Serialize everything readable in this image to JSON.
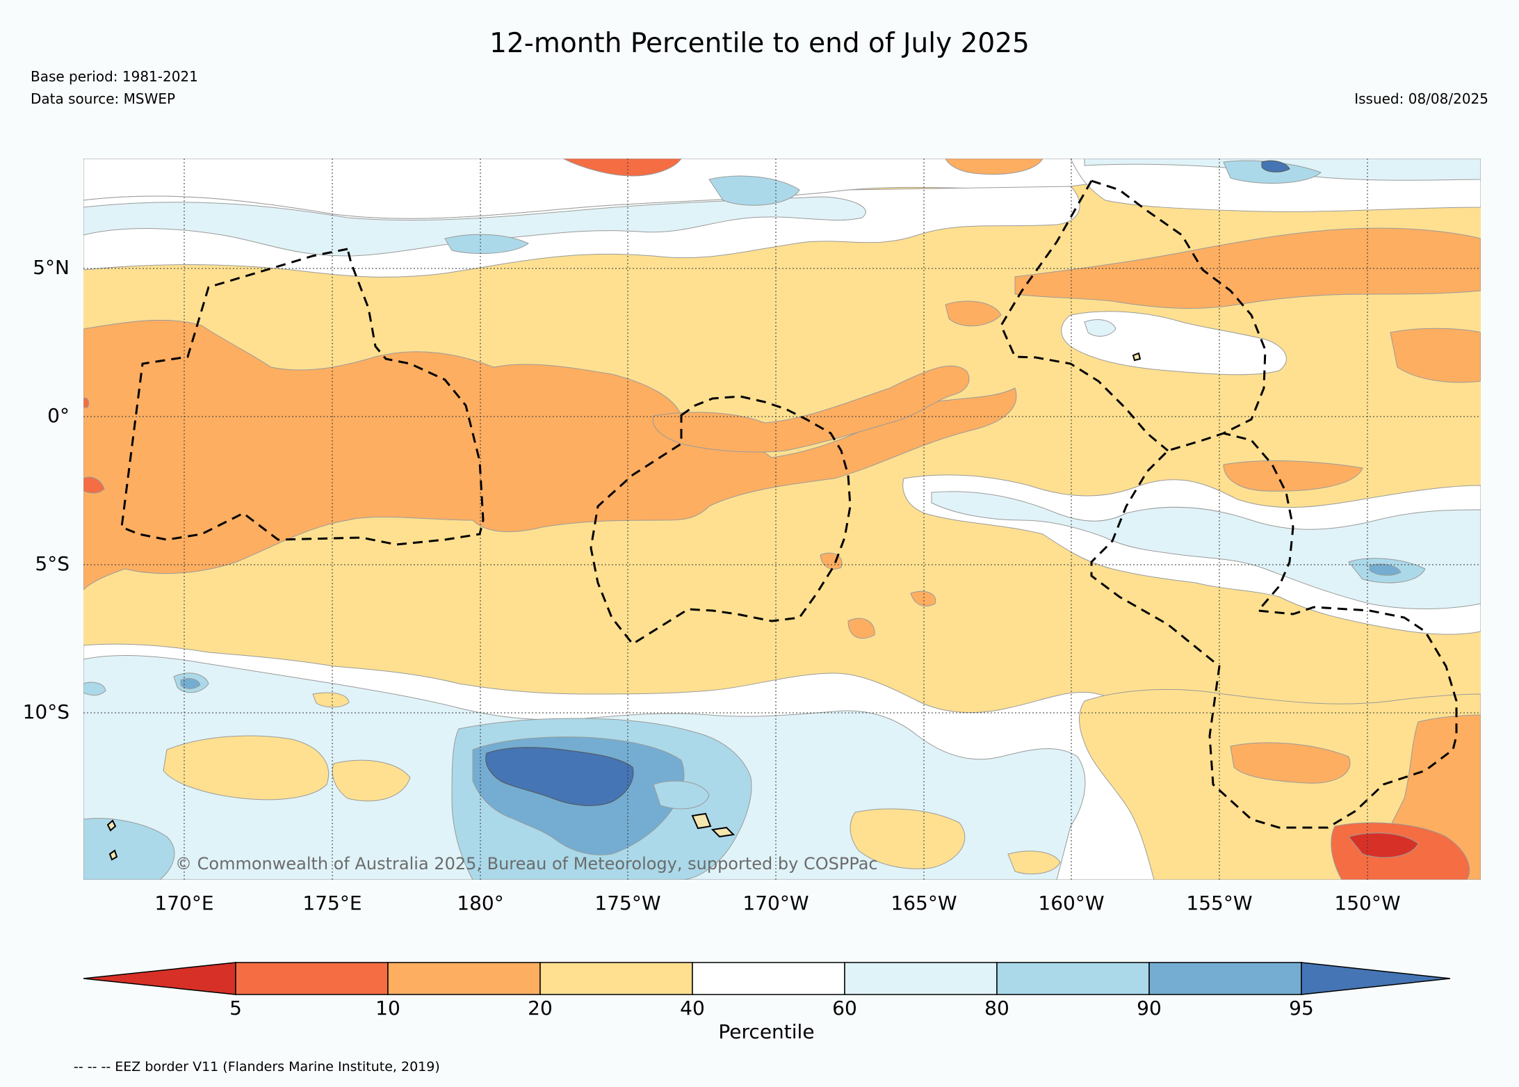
{
  "header": {
    "title": "12-month Percentile to end of July 2025",
    "base_period": "Base period: 1981-2021",
    "data_source": "Data source: MSWEP",
    "issued": "Issued: 08/08/2025"
  },
  "map": {
    "lat_labels": [
      "5°N",
      "0°",
      "5°S",
      "10°S"
    ],
    "lon_labels": [
      "170°E",
      "175°E",
      "180°",
      "175°W",
      "170°W",
      "165°W",
      "160°W",
      "155°W",
      "150°W"
    ],
    "copyright": "© Commonwealth of Australia 2025, Bureau of Meteorology, supported by COSPPac",
    "category_colors": {
      "below_5": "#d73027",
      "5_10": "#f46d43",
      "10_20": "#fdae61",
      "20_40": "#fee090",
      "40_60": "#ffffff",
      "60_80": "#e0f3f8",
      "80_90": "#abd9e9",
      "90_95": "#74add1",
      "above_95": "#4575b4"
    }
  },
  "colorbar": {
    "ticks": [
      "5",
      "10",
      "20",
      "40",
      "60",
      "80",
      "90",
      "95"
    ],
    "label": "Percentile",
    "colors": [
      "#d73027",
      "#f46d43",
      "#fdae61",
      "#fee090",
      "#ffffff",
      "#e0f3f8",
      "#abd9e9",
      "#74add1",
      "#4575b4"
    ]
  },
  "footnote": "-- -- -- EEZ border V11 (Flanders Marine Institute, 2019)"
}
